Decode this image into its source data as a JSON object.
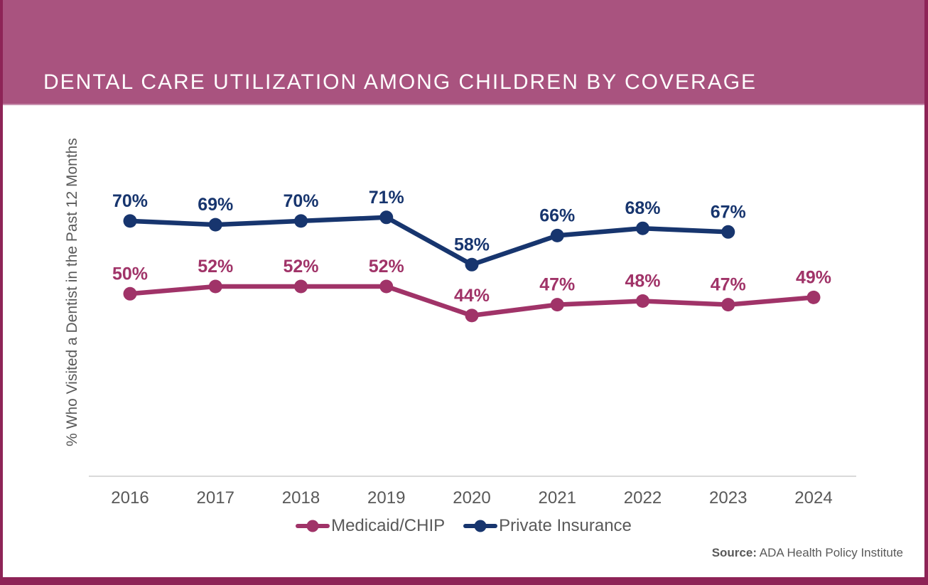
{
  "header": {
    "title": "DENTAL CARE UTILIZATION AMONG CHILDREN BY COVERAGE"
  },
  "chart_data": {
    "type": "line",
    "categories": [
      "2016",
      "2017",
      "2018",
      "2019",
      "2020",
      "2021",
      "2022",
      "2023",
      "2024"
    ],
    "series": [
      {
        "name": "Medicaid/CHIP",
        "color": "#a03368",
        "values": [
          50,
          52,
          52,
          52,
          44,
          47,
          48,
          47,
          49
        ]
      },
      {
        "name": "Private Insurance",
        "color": "#17356e",
        "values": [
          70,
          69,
          70,
          71,
          58,
          66,
          68,
          67,
          null
        ]
      }
    ],
    "ylabel": "% Who Visited a Dentist in the Past 12 Months",
    "xlabel": "",
    "title": "",
    "value_suffix": "%",
    "ylim": [
      0,
      100
    ],
    "grid": false,
    "legend_position": "bottom",
    "data_labels": true
  },
  "source": {
    "prefix": "Source:",
    "text": " ADA Health Policy Institute"
  },
  "colors": {
    "banner": "#a9537f",
    "frame": "#8e2457",
    "axis_line": "#d9d9d9",
    "text_gray": "#595959"
  }
}
